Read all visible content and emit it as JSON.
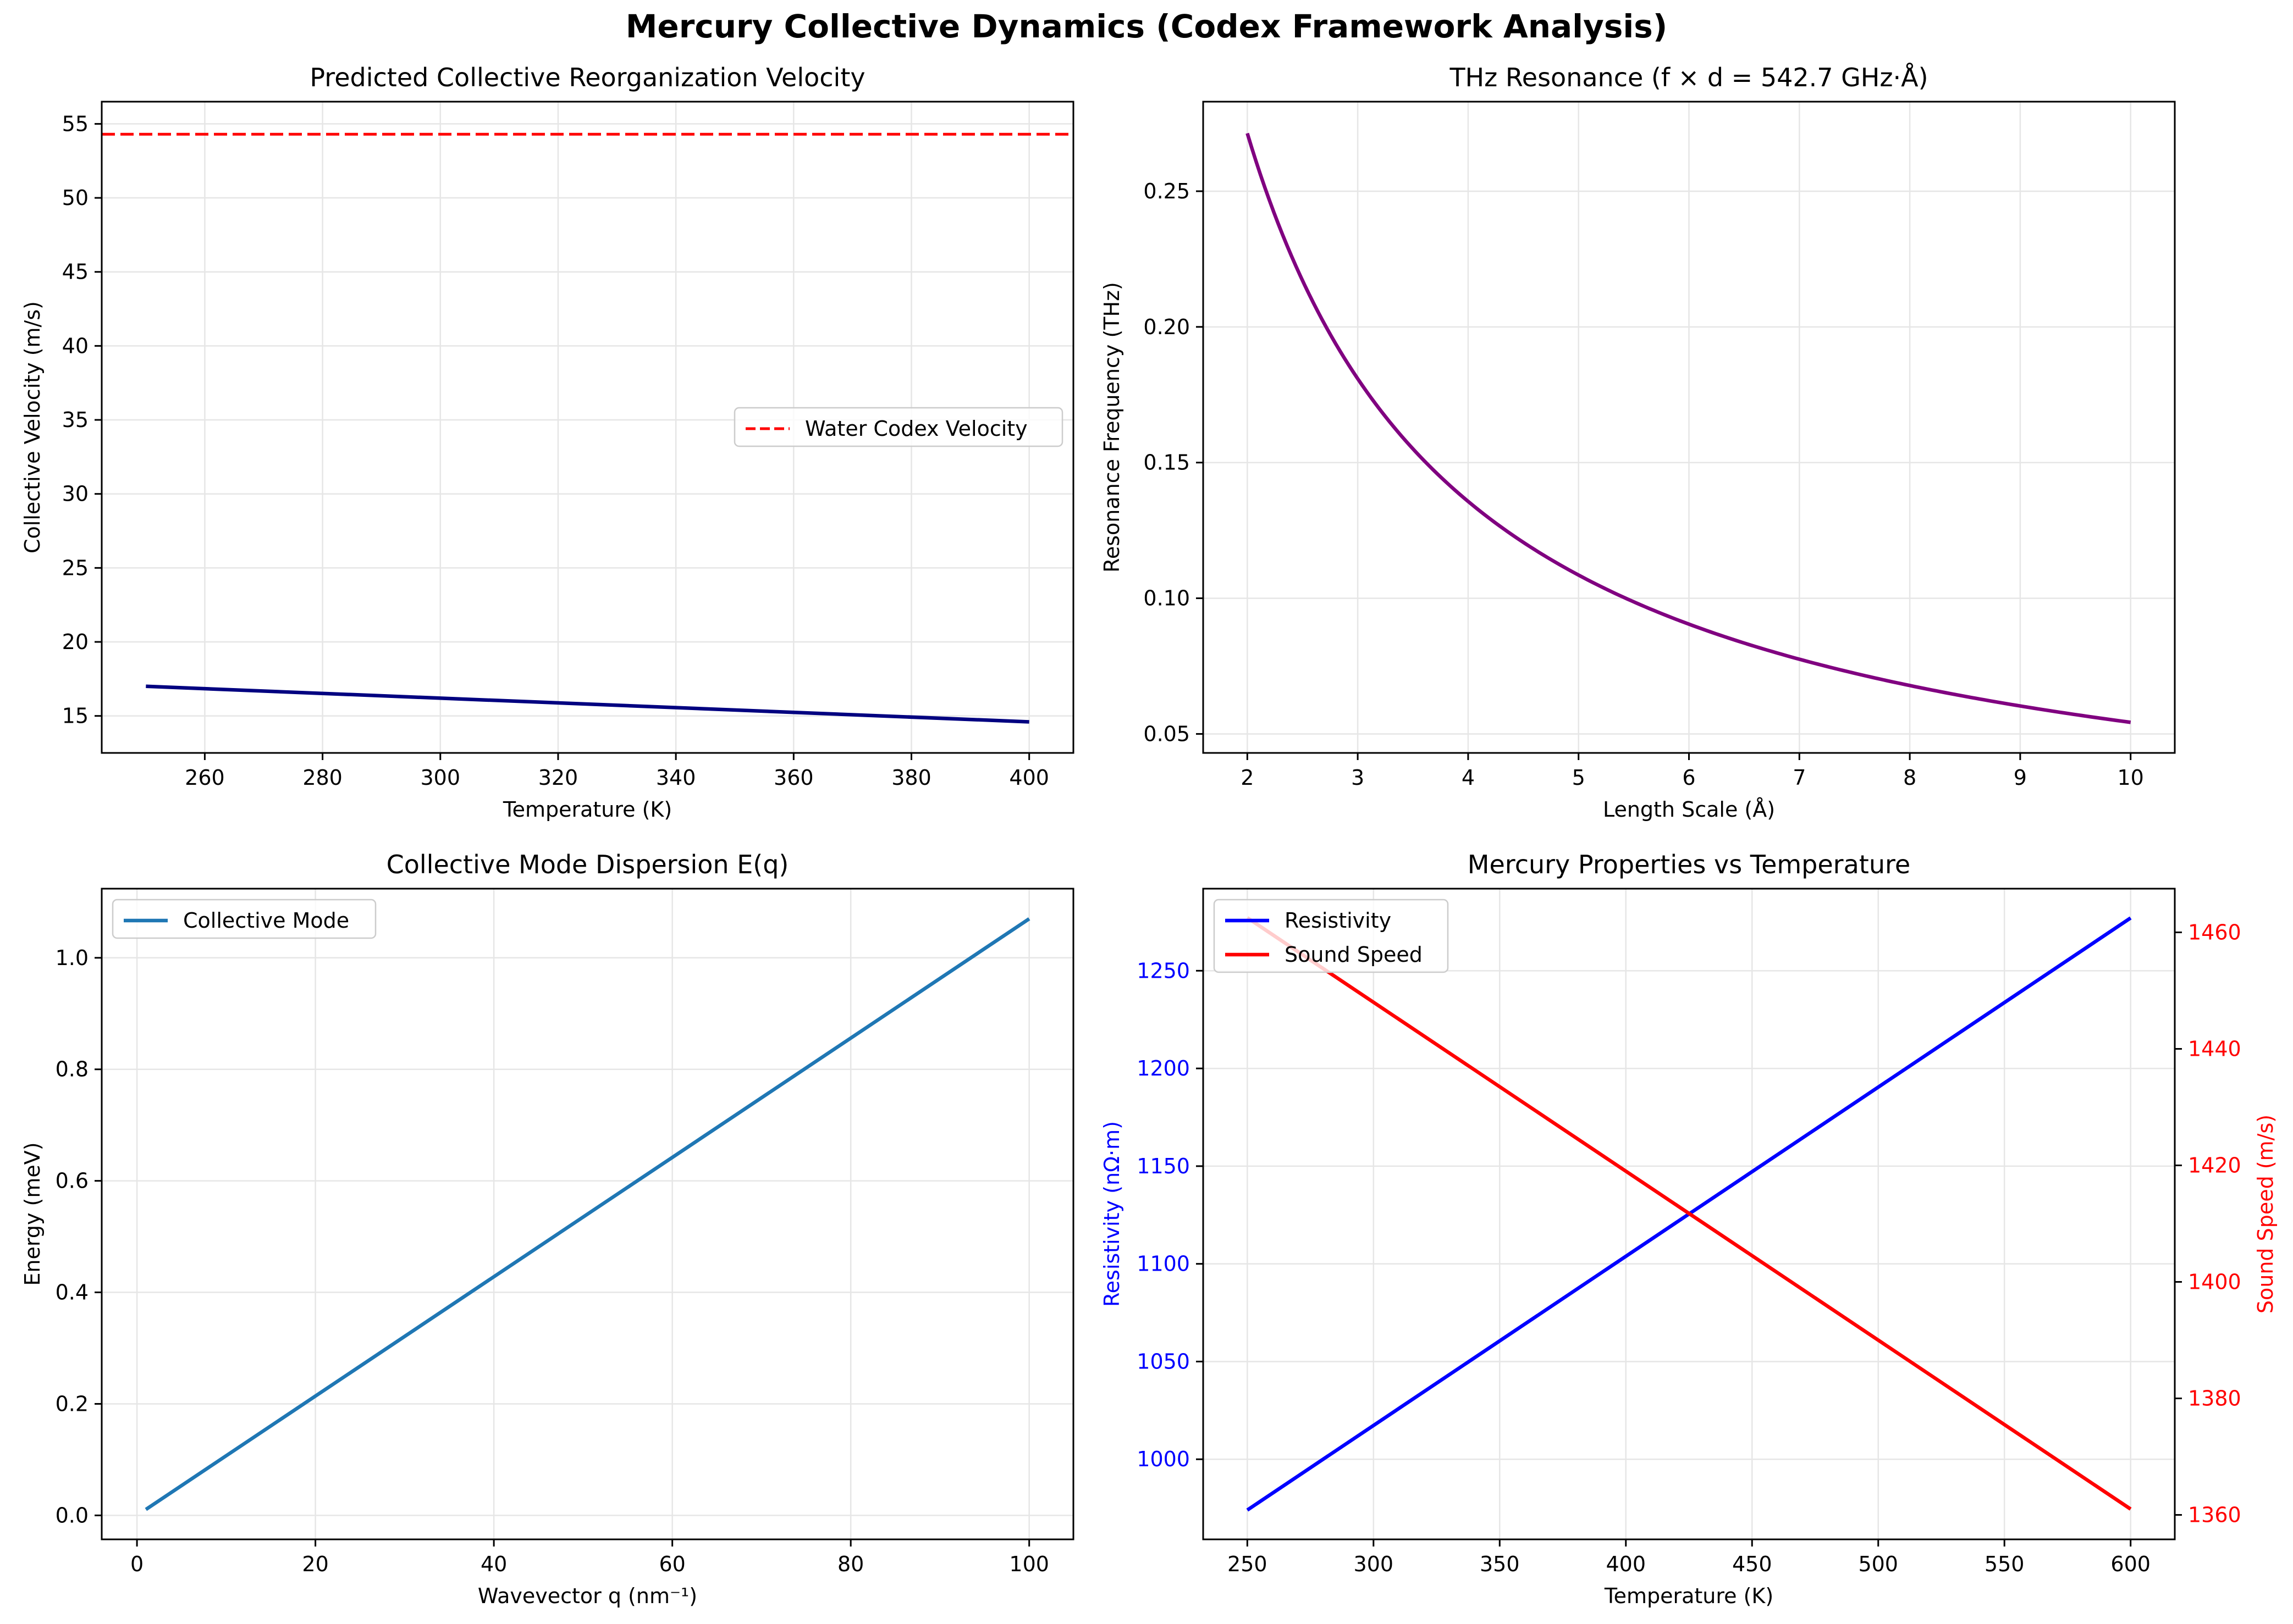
{
  "figure": {
    "suptitle": "Mercury Collective Dynamics (Codex Framework Analysis)"
  },
  "colors": {
    "navy": "#000080",
    "red_dashed": "#ff0000",
    "purple": "#800080",
    "tab_blue": "#1f77b4",
    "blue": "#0000ff",
    "red": "#ff0000"
  },
  "chart_data": [
    {
      "type": "line",
      "title": "Predicted Collective Reorganization Velocity",
      "xlabel": "Temperature (K)",
      "ylabel": "Collective Velocity (m/s)",
      "xlim": [
        242.5,
        407.5
      ],
      "ylim": [
        12.5,
        56.5
      ],
      "xticks": [
        260,
        280,
        300,
        320,
        340,
        360,
        380,
        400
      ],
      "yticks": [
        15,
        20,
        25,
        30,
        35,
        40,
        45,
        50,
        55
      ],
      "grid": true,
      "legend": "center-right",
      "series": [
        {
          "x": [
            250,
            400
          ],
          "y": [
            17.0,
            14.6
          ],
          "color": "#000080",
          "style": "solid"
        },
        {
          "name": "Water Codex Velocity",
          "hline": 54.3,
          "color": "#ff0000",
          "style": "dashed"
        }
      ]
    },
    {
      "type": "line",
      "title": "THz Resonance (f × d = 542.7 GHz·Å)",
      "xlabel": "Length Scale (Å)",
      "ylabel": "Resonance Frequency (THz)",
      "xlim": [
        1.6,
        10.4
      ],
      "ylim": [
        0.043,
        0.283
      ],
      "xticks": [
        2,
        3,
        4,
        5,
        6,
        7,
        8,
        9,
        10
      ],
      "yticks": [
        0.05,
        0.1,
        0.15,
        0.2,
        0.25
      ],
      "grid": true,
      "series": [
        {
          "function": "0.5427/x",
          "x_range": [
            2,
            10
          ],
          "color": "#800080",
          "style": "solid"
        }
      ]
    },
    {
      "type": "line",
      "title": "Collective Mode Dispersion E(q)",
      "xlabel": "Wavevector q (nm⁻¹)",
      "ylabel": "Energy (meV)",
      "xlim": [
        -3.95,
        104.95
      ],
      "ylim": [
        -0.043,
        1.124
      ],
      "xticks": [
        0,
        20,
        40,
        60,
        80,
        100
      ],
      "yticks": [
        0.0,
        0.2,
        0.4,
        0.6,
        0.8,
        1.0
      ],
      "grid": true,
      "legend": "top-left",
      "series": [
        {
          "name": "Collective Mode",
          "x": [
            1,
            100
          ],
          "y": [
            0.0107,
            1.07
          ],
          "color": "#1f77b4",
          "style": "solid"
        }
      ]
    },
    {
      "type": "line",
      "title": "Mercury Properties vs Temperature",
      "xlabel": "Temperature (K)",
      "ylabel": "Resistivity (nΩ·m)",
      "ylabel_right": "Sound Speed (m/s)",
      "xlim": [
        232.5,
        617.5
      ],
      "ylim": [
        959,
        1292
      ],
      "ylim_right": [
        1355.8,
        1467.5
      ],
      "xticks": [
        250,
        300,
        350,
        400,
        450,
        500,
        550,
        600
      ],
      "yticks": [
        1000,
        1050,
        1100,
        1150,
        1200,
        1250
      ],
      "yticks_right": [
        1360,
        1380,
        1400,
        1420,
        1440,
        1460
      ],
      "grid": true,
      "legend": "top-left",
      "series": [
        {
          "name": "Resistivity",
          "x": [
            250,
            600
          ],
          "y": [
            974,
            1277
          ],
          "axis": "left",
          "color": "#0000ff",
          "style": "solid"
        },
        {
          "name": "Sound Speed",
          "x": [
            250,
            600
          ],
          "y": [
            1462.5,
            1361
          ],
          "axis": "right",
          "color": "#ff0000",
          "style": "solid"
        }
      ]
    }
  ]
}
